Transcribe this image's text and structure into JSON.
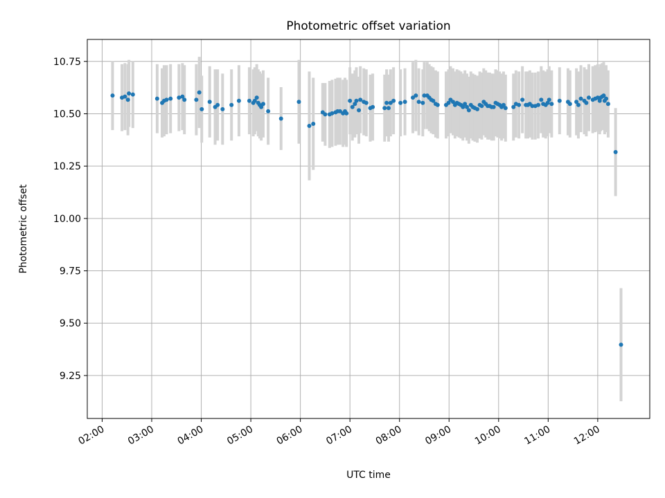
{
  "chart_data": {
    "type": "scatter",
    "title": "Photometric offset variation",
    "xlabel": "UTC time",
    "ylabel": "Photometric offset",
    "xlim": [
      1.7,
      13.05
    ],
    "ylim": [
      9.045,
      10.855
    ],
    "grid": true,
    "colors": {
      "point": "#1f77b4",
      "errorbar": "#d3d3d3",
      "grid": "#b0b0b0",
      "axis": "#000000"
    },
    "x_ticks": [
      {
        "value": 2,
        "label": "02:00"
      },
      {
        "value": 3,
        "label": "03:00"
      },
      {
        "value": 4,
        "label": "04:00"
      },
      {
        "value": 5,
        "label": "05:00"
      },
      {
        "value": 6,
        "label": "06:00"
      },
      {
        "value": 7,
        "label": "07:00"
      },
      {
        "value": 8,
        "label": "08:00"
      },
      {
        "value": 9,
        "label": "09:00"
      },
      {
        "value": 10,
        "label": "10:00"
      },
      {
        "value": 11,
        "label": "11:00"
      },
      {
        "value": 12,
        "label": "12:00"
      }
    ],
    "y_ticks": [
      {
        "value": 9.25,
        "label": "9.25"
      },
      {
        "value": 9.5,
        "label": "9.50"
      },
      {
        "value": 9.75,
        "label": "9.75"
      },
      {
        "value": 10.0,
        "label": "10.00"
      },
      {
        "value": 10.25,
        "label": "10.25"
      },
      {
        "value": 10.5,
        "label": "10.50"
      },
      {
        "value": 10.75,
        "label": "10.75"
      }
    ],
    "points": [
      [
        2.21,
        10.587,
        0.165
      ],
      [
        2.4,
        10.577,
        0.16
      ],
      [
        2.46,
        10.582,
        0.16
      ],
      [
        2.52,
        10.567,
        0.17
      ],
      [
        2.54,
        10.597,
        0.16
      ],
      [
        2.62,
        10.592,
        0.16
      ],
      [
        3.11,
        10.572,
        0.165
      ],
      [
        3.21,
        10.552,
        0.165
      ],
      [
        3.25,
        10.562,
        0.17
      ],
      [
        3.3,
        10.567,
        0.165
      ],
      [
        3.38,
        10.572,
        0.165
      ],
      [
        3.55,
        10.577,
        0.16
      ],
      [
        3.62,
        10.582,
        0.16
      ],
      [
        3.66,
        10.567,
        0.165
      ],
      [
        3.9,
        10.567,
        0.17
      ],
      [
        3.96,
        10.602,
        0.17
      ],
      [
        4.01,
        10.522,
        0.16
      ],
      [
        4.17,
        10.557,
        0.17
      ],
      [
        4.28,
        10.532,
        0.18
      ],
      [
        4.33,
        10.542,
        0.17
      ],
      [
        4.43,
        10.522,
        0.17
      ],
      [
        4.61,
        10.542,
        0.17
      ],
      [
        4.76,
        10.562,
        0.17
      ],
      [
        4.97,
        10.562,
        0.16
      ],
      [
        5.05,
        10.552,
        0.16
      ],
      [
        5.08,
        10.562,
        0.16
      ],
      [
        5.12,
        10.577,
        0.16
      ],
      [
        5.15,
        10.552,
        0.16
      ],
      [
        5.18,
        10.542,
        0.16
      ],
      [
        5.21,
        10.532,
        0.16
      ],
      [
        5.25,
        10.547,
        0.16
      ],
      [
        5.35,
        10.512,
        0.16
      ],
      [
        5.61,
        10.477,
        0.15
      ],
      [
        5.97,
        10.557,
        0.2
      ],
      [
        6.18,
        10.442,
        0.26
      ],
      [
        6.26,
        10.452,
        0.22
      ],
      [
        6.45,
        10.507,
        0.14
      ],
      [
        6.5,
        10.497,
        0.15
      ],
      [
        6.59,
        10.497,
        0.16
      ],
      [
        6.64,
        10.502,
        0.16
      ],
      [
        6.71,
        10.507,
        0.16
      ],
      [
        6.75,
        10.512,
        0.16
      ],
      [
        6.8,
        10.512,
        0.16
      ],
      [
        6.86,
        10.502,
        0.16
      ],
      [
        6.9,
        10.512,
        0.16
      ],
      [
        6.93,
        10.502,
        0.16
      ],
      [
        7.0,
        10.562,
        0.16
      ],
      [
        7.05,
        10.532,
        0.16
      ],
      [
        7.1,
        10.547,
        0.16
      ],
      [
        7.13,
        10.562,
        0.16
      ],
      [
        7.18,
        10.517,
        0.16
      ],
      [
        7.21,
        10.567,
        0.16
      ],
      [
        7.28,
        10.557,
        0.16
      ],
      [
        7.33,
        10.552,
        0.16
      ],
      [
        7.41,
        10.527,
        0.16
      ],
      [
        7.46,
        10.532,
        0.16
      ],
      [
        7.7,
        10.527,
        0.16
      ],
      [
        7.74,
        10.552,
        0.16
      ],
      [
        7.78,
        10.527,
        0.16
      ],
      [
        7.82,
        10.552,
        0.16
      ],
      [
        7.88,
        10.562,
        0.16
      ],
      [
        8.02,
        10.552,
        0.16
      ],
      [
        8.11,
        10.557,
        0.16
      ],
      [
        8.27,
        10.577,
        0.17
      ],
      [
        8.33,
        10.587,
        0.17
      ],
      [
        8.39,
        10.557,
        0.16
      ],
      [
        8.47,
        10.552,
        0.16
      ],
      [
        8.5,
        10.587,
        0.16
      ],
      [
        8.56,
        10.587,
        0.16
      ],
      [
        8.6,
        10.577,
        0.16
      ],
      [
        8.64,
        10.567,
        0.16
      ],
      [
        8.68,
        10.562,
        0.16
      ],
      [
        8.73,
        10.547,
        0.16
      ],
      [
        8.77,
        10.542,
        0.16
      ],
      [
        8.94,
        10.542,
        0.16
      ],
      [
        8.99,
        10.552,
        0.16
      ],
      [
        9.03,
        10.567,
        0.16
      ],
      [
        9.08,
        10.557,
        0.16
      ],
      [
        9.12,
        10.542,
        0.16
      ],
      [
        9.16,
        10.552,
        0.16
      ],
      [
        9.2,
        10.547,
        0.16
      ],
      [
        9.24,
        10.542,
        0.16
      ],
      [
        9.28,
        10.532,
        0.16
      ],
      [
        9.32,
        10.547,
        0.16
      ],
      [
        9.36,
        10.532,
        0.16
      ],
      [
        9.4,
        10.517,
        0.16
      ],
      [
        9.44,
        10.542,
        0.16
      ],
      [
        9.48,
        10.532,
        0.16
      ],
      [
        9.52,
        10.527,
        0.16
      ],
      [
        9.57,
        10.522,
        0.16
      ],
      [
        9.62,
        10.542,
        0.16
      ],
      [
        9.66,
        10.537,
        0.16
      ],
      [
        9.7,
        10.557,
        0.16
      ],
      [
        9.74,
        10.547,
        0.16
      ],
      [
        9.78,
        10.537,
        0.16
      ],
      [
        9.82,
        10.537,
        0.16
      ],
      [
        9.86,
        10.532,
        0.16
      ],
      [
        9.9,
        10.532,
        0.16
      ],
      [
        9.94,
        10.552,
        0.16
      ],
      [
        9.98,
        10.547,
        0.16
      ],
      [
        10.02,
        10.542,
        0.16
      ],
      [
        10.06,
        10.532,
        0.16
      ],
      [
        10.1,
        10.542,
        0.16
      ],
      [
        10.14,
        10.527,
        0.16
      ],
      [
        10.3,
        10.532,
        0.16
      ],
      [
        10.35,
        10.547,
        0.16
      ],
      [
        10.41,
        10.542,
        0.16
      ],
      [
        10.48,
        10.567,
        0.16
      ],
      [
        10.55,
        10.542,
        0.16
      ],
      [
        10.59,
        10.542,
        0.16
      ],
      [
        10.63,
        10.547,
        0.16
      ],
      [
        10.68,
        10.537,
        0.16
      ],
      [
        10.74,
        10.537,
        0.16
      ],
      [
        10.8,
        10.542,
        0.16
      ],
      [
        10.86,
        10.567,
        0.16
      ],
      [
        10.9,
        10.547,
        0.16
      ],
      [
        10.95,
        10.542,
        0.16
      ],
      [
        10.99,
        10.552,
        0.16
      ],
      [
        11.02,
        10.567,
        0.16
      ],
      [
        11.07,
        10.547,
        0.16
      ],
      [
        11.23,
        10.562,
        0.16
      ],
      [
        11.4,
        10.557,
        0.16
      ],
      [
        11.44,
        10.547,
        0.16
      ],
      [
        11.57,
        10.557,
        0.16
      ],
      [
        11.61,
        10.542,
        0.16
      ],
      [
        11.66,
        10.572,
        0.16
      ],
      [
        11.73,
        10.562,
        0.16
      ],
      [
        11.77,
        10.552,
        0.16
      ],
      [
        11.82,
        10.577,
        0.16
      ],
      [
        11.9,
        10.567,
        0.16
      ],
      [
        11.95,
        10.572,
        0.16
      ],
      [
        12.0,
        10.577,
        0.16
      ],
      [
        12.04,
        10.562,
        0.16
      ],
      [
        12.06,
        10.577,
        0.16
      ],
      [
        12.09,
        10.582,
        0.16
      ],
      [
        12.12,
        10.587,
        0.16
      ],
      [
        12.14,
        10.562,
        0.16
      ],
      [
        12.17,
        10.572,
        0.16
      ],
      [
        12.21,
        10.547,
        0.16
      ],
      [
        12.36,
        10.317,
        0.21
      ],
      [
        12.47,
        9.397,
        0.27
      ]
    ]
  }
}
